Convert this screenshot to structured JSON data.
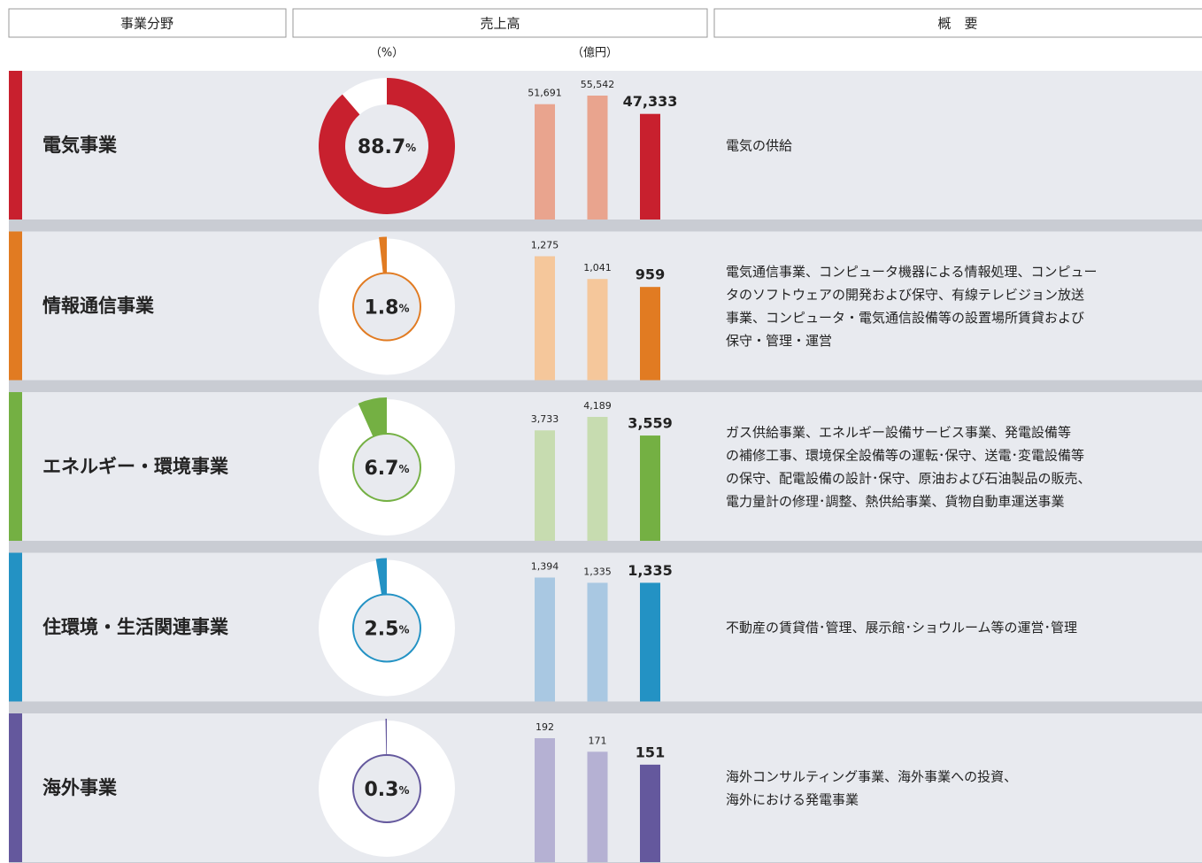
{
  "header": {
    "columns": [
      "事業分野",
      "売上高",
      "概　要"
    ],
    "share_unit_note": "（%）",
    "sales_unit_note": "（億円）"
  },
  "rows": [
    {
      "name": "電気事業",
      "color": "#c8202e",
      "light": "#e9a48e",
      "share": 88.7,
      "share_unit": "%",
      "sales": [
        {
          "value": 51691,
          "label": "51,691"
        },
        {
          "value": 55542,
          "label": "55,542"
        },
        {
          "value": 47333,
          "label": "47,333"
        }
      ],
      "description": [
        "電気の供給"
      ]
    },
    {
      "name": "情報通信事業",
      "color": "#e17b22",
      "light": "#f5c79b",
      "share": 1.8,
      "share_unit": "%",
      "sales": [
        {
          "value": 1275,
          "label": "1,275"
        },
        {
          "value": 1041,
          "label": "1,041"
        },
        959
      ],
      "description": [
        "電気通信事業、コンピュータ機器による情報処理、コンピュー",
        "タのソフトウェアの開発および保守、有線テレビジョン放送",
        "事業、コンピュータ・電気通信設備等の設置場所賃貸および",
        "保守・管理・運営"
      ]
    },
    {
      "name": "エネルギー・環境事業",
      "color": "#74b043",
      "light": "#c7dcb0",
      "share": 6.7,
      "share_unit": "%",
      "sales": [
        {
          "value": 3733,
          "label": "3,733"
        },
        {
          "value": 4189,
          "label": "4,189"
        },
        {
          "value": 3559,
          "label": "3,559"
        }
      ],
      "description": [
        "ガス供給事業、エネルギー設備サービス事業、発電設備等",
        "の補修工事、環境保全設備等の運転･保守、送電･変電設備等",
        "の保守、配電設備の設計･保守、原油および石油製品の販売、",
        "電力量計の修理･調整、熱供給事業、貨物自動車運送事業"
      ]
    },
    {
      "name": "住環境・生活関連事業",
      "color": "#2392c4",
      "light": "#a9c8e2",
      "share": 2.5,
      "share_unit": "%",
      "sales": [
        {
          "value": 1394,
          "label": "1,394"
        },
        {
          "value": 1335,
          "label": "1,335"
        },
        {
          "value": 1335,
          "label": "1,335"
        }
      ],
      "description": [
        "不動産の賃貸借･管理、展示館･ショウルーム等の運営･管理"
      ]
    },
    {
      "name": "海外事業",
      "color": "#64589d",
      "light": "#b5b1d3",
      "share": 0.3,
      "share_unit": "%",
      "sales": [
        192,
        171,
        151
      ],
      "description": [
        "海外コンサルティング事業、海外事業への投資、",
        "海外における発電事業"
      ]
    }
  ]
}
